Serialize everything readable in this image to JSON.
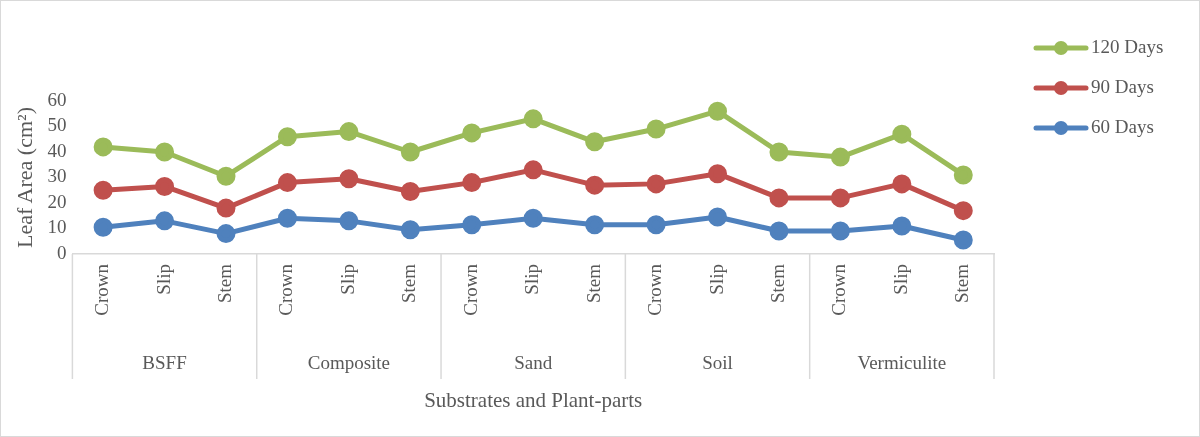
{
  "chart_data": {
    "type": "line",
    "xlabel": "Substrates and Plant-parts",
    "ylabel": "Leaf Area (cm²)",
    "categories": [
      "Crown",
      "Slip",
      "Stem",
      "Crown",
      "Slip",
      "Stem",
      "Crown",
      "Slip",
      "Stem",
      "Crown",
      "Slip",
      "Stem",
      "Crown",
      "Slip",
      "Stem"
    ],
    "annotations": [
      "BSFF",
      "Composite",
      "Sand",
      "Soil",
      "Vermiculite"
    ],
    "series": [
      {
        "name": "120 Days",
        "color": "#9bbb59",
        "values": [
          42,
          40,
          30.5,
          46,
          48,
          40,
          47.5,
          53,
          44,
          49,
          56,
          40,
          38,
          47,
          31
        ]
      },
      {
        "name": "90 Days",
        "color": "#c0504d",
        "values": [
          25,
          26.5,
          18,
          28,
          29.5,
          24.5,
          28,
          33,
          27,
          27.5,
          31.5,
          22,
          22,
          27.5,
          17
        ]
      },
      {
        "name": "60 Days",
        "color": "#4f81bd",
        "values": [
          10.5,
          13,
          8,
          14,
          13,
          9.5,
          11.5,
          14,
          11.5,
          11.5,
          14.5,
          9,
          9,
          11,
          5.5
        ]
      }
    ],
    "ylim": [
      0,
      60
    ],
    "yticks": [
      0,
      10,
      20,
      30,
      40,
      50,
      60
    ],
    "grid": false,
    "legend": "top right",
    "marker": "circle",
    "line_style": "solid"
  }
}
